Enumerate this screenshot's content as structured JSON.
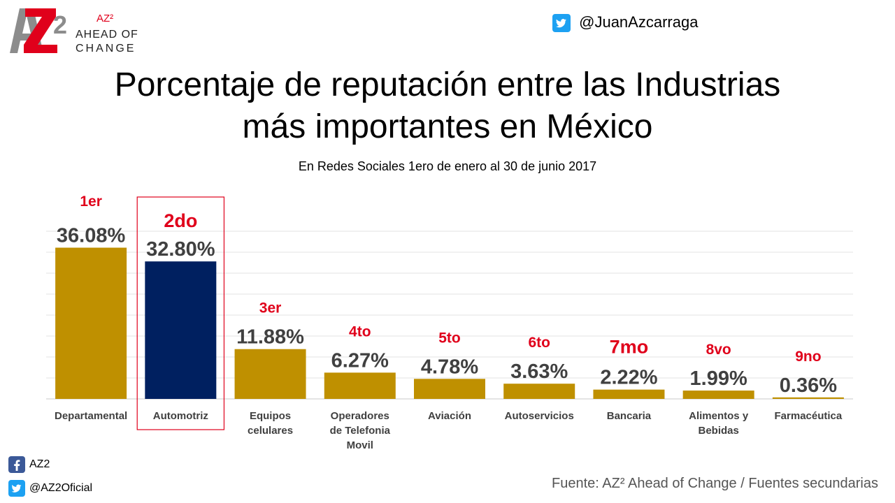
{
  "brand": {
    "superscript": "AZ²",
    "line1": "AHEAD OF",
    "line2": "CHANGE",
    "logo_text": "AZ2"
  },
  "twitter_handle_top": "@JuanAzcarraga",
  "title_line1": "Porcentaje de reputación entre las Industrias",
  "title_line2": "más importantes en México",
  "subtitle": "En Redes Sociales 1ero de enero al 30 de junio 2017",
  "social": {
    "facebook": "AZ2",
    "twitter": "@AZ2Oficial"
  },
  "source": "Fuente: AZ² Ahead of Change / Fuentes secundarias",
  "colors": {
    "bar": "#bf9000",
    "highlight_bar": "#002060",
    "rank_text": "#e0001b",
    "value_text": "#404040",
    "highlight_box": "#e0001b"
  },
  "chart_data": {
    "type": "bar",
    "title": "Porcentaje de reputación entre las Industrias más importantes en México",
    "subtitle": "En Redes Sociales 1ero de enero al 30 de junio 2017",
    "categories": [
      [
        "Departamental"
      ],
      [
        "Automotriz"
      ],
      [
        "Equipos",
        "celulares"
      ],
      [
        "Operadores",
        "de Telefonia",
        "Movil"
      ],
      [
        "Aviación"
      ],
      [
        "Autoservicios"
      ],
      [
        "Bancaria"
      ],
      [
        "Alimentos y",
        "Bebidas"
      ],
      [
        "Farmacéutica"
      ]
    ],
    "values": [
      36.08,
      32.8,
      11.88,
      6.27,
      4.78,
      3.63,
      2.22,
      1.99,
      0.36
    ],
    "value_labels": [
      "36.08%",
      "32.80%",
      "11.88%",
      "6.27%",
      "4.78%",
      "3.63%",
      "2.22%",
      "1.99%",
      "0.36%"
    ],
    "ranks": [
      "1er",
      "2do",
      "3er",
      "4to",
      "5to",
      "6to",
      "7mo",
      "8vo",
      "9no"
    ],
    "highlight_index": 1,
    "ylim": [
      0,
      40
    ],
    "grid": true,
    "xlabel": "",
    "ylabel": ""
  }
}
